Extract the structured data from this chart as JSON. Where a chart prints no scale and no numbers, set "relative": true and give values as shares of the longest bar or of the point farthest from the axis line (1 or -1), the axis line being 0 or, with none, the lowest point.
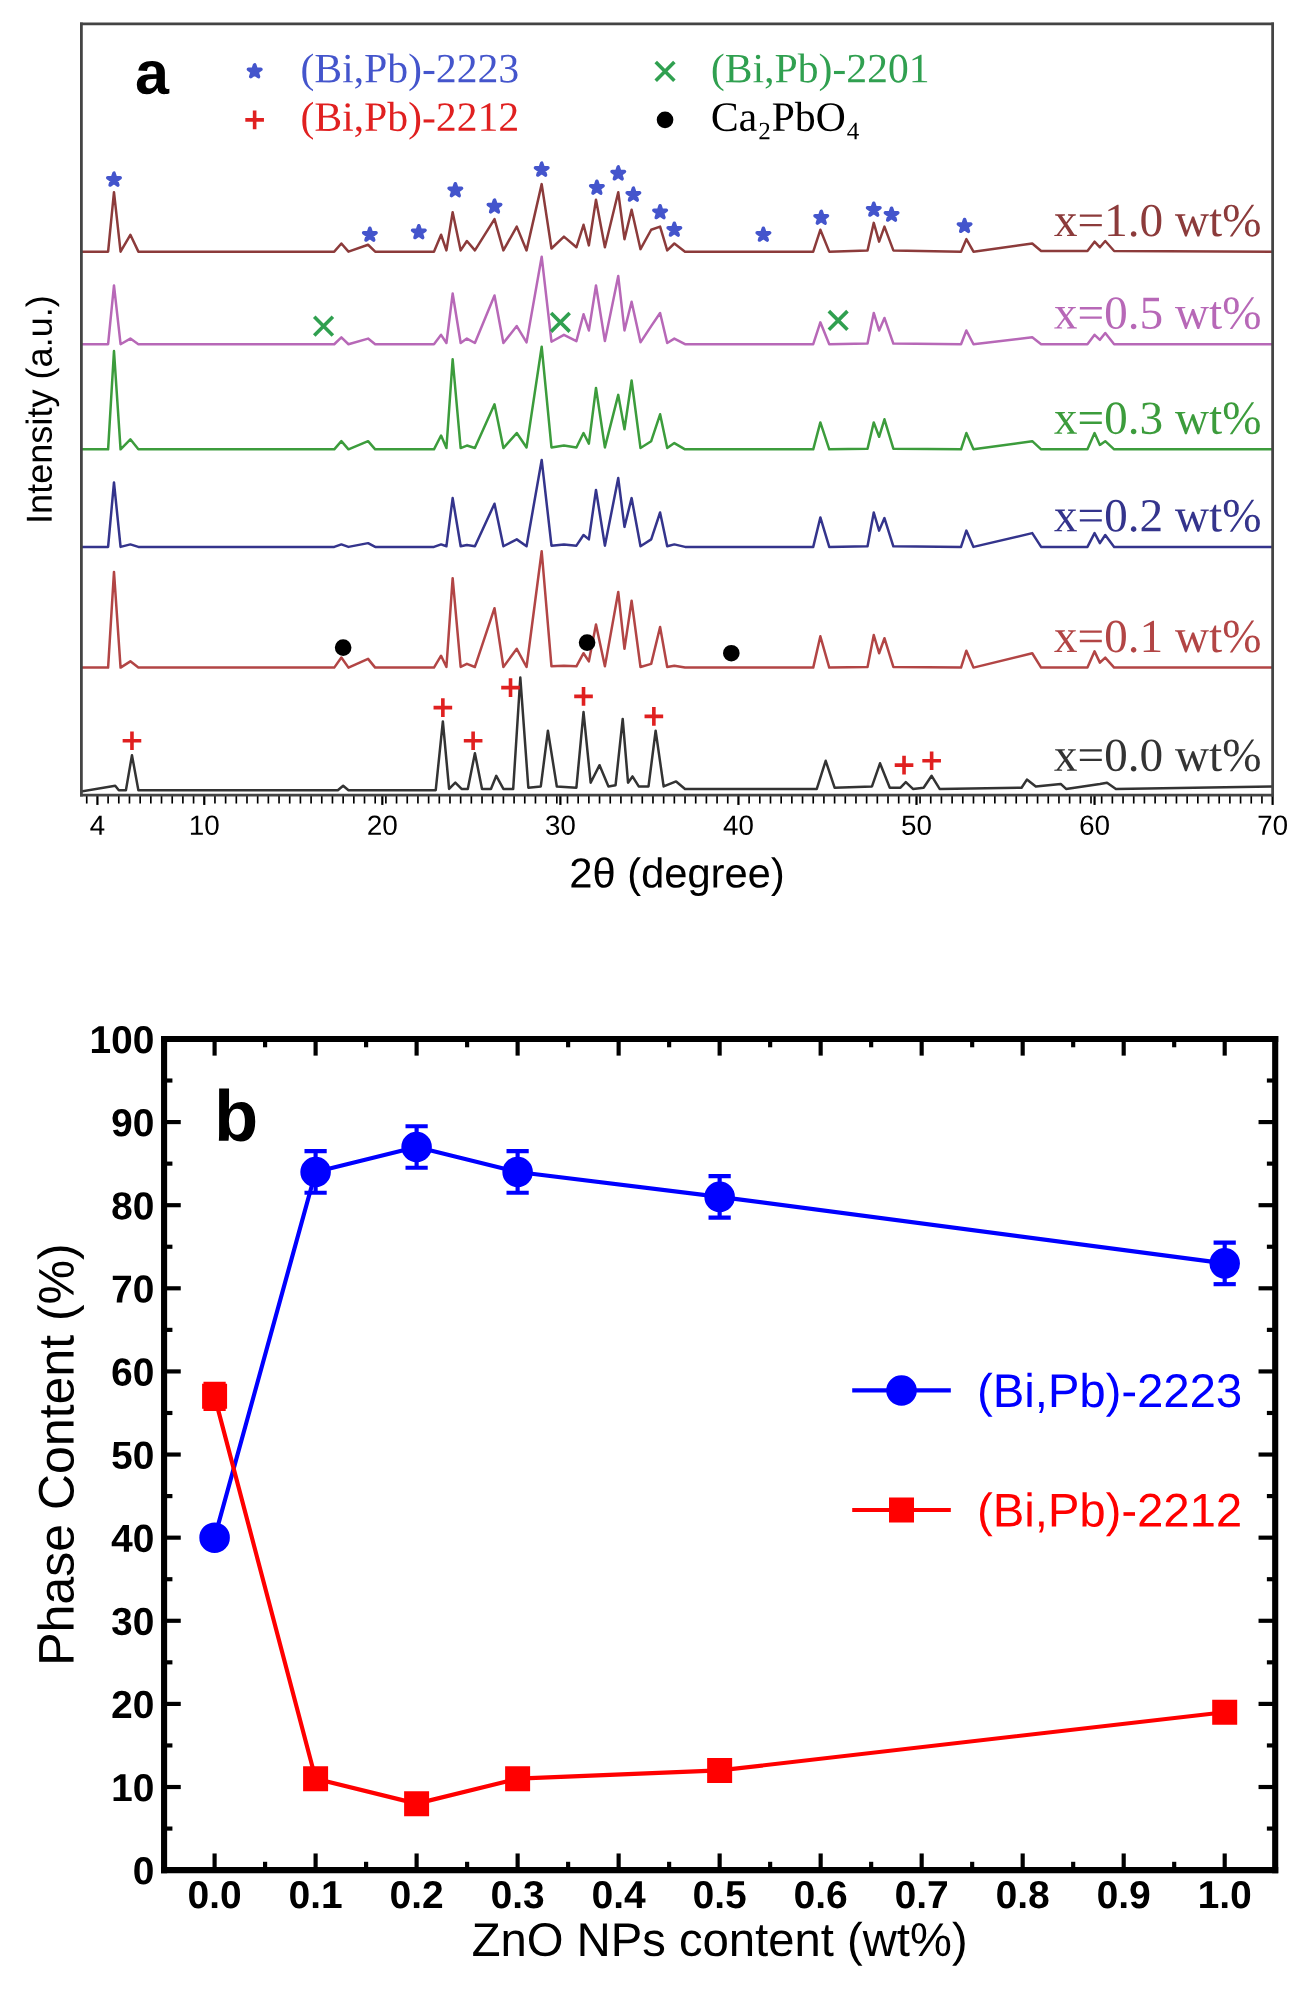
{
  "chart_data": [
    {
      "type": "line",
      "relative": true,
      "xlabel": "2θ (degree)",
      "ylabel": "Intensity (a.u.)",
      "annotations": [
        "a"
      ],
      "xlim": [
        3.1,
        70
      ],
      "xticks": [
        4,
        10,
        20,
        30,
        40,
        50,
        60,
        70
      ],
      "legend": "top",
      "marker": "none",
      "x": [
        3.1,
        4.6,
        4.93,
        5.3,
        5.85,
        6.3,
        17.3,
        17.7,
        18.1,
        19.2,
        19.6,
        22.9,
        23.3,
        23.6,
        23.95,
        24.4,
        24.75,
        25.2,
        26.3,
        26.8,
        27.55,
        28.1,
        28.95,
        29.5,
        30.2,
        30.9,
        31.3,
        31.6,
        32.0,
        32.5,
        33.25,
        33.6,
        34.0,
        34.5,
        35.1,
        35.6,
        36.0,
        36.4,
        37.0,
        44.2,
        44.6,
        45.1,
        47.25,
        47.6,
        47.9,
        48.2,
        48.7,
        52.5,
        52.8,
        53.2,
        56.5,
        57.0,
        59.6,
        60.0,
        60.3,
        60.6,
        61.1,
        70.0
      ],
      "series": [
        {
          "name": "x=1.0 wt%",
          "color": "#8c3b3b",
          "values": [
            0.869,
            0.869,
            0.964,
            0.869,
            0.896,
            0.869,
            0.869,
            0.882,
            0.869,
            0.88,
            0.869,
            0.869,
            0.896,
            0.871,
            0.932,
            0.871,
            0.886,
            0.871,
            0.921,
            0.871,
            0.909,
            0.871,
            0.977,
            0.874,
            0.893,
            0.876,
            0.912,
            0.879,
            0.952,
            0.876,
            0.964,
            0.889,
            0.936,
            0.873,
            0.904,
            0.909,
            0.871,
            0.882,
            0.869,
            0.869,
            0.904,
            0.869,
            0.871,
            0.915,
            0.885,
            0.909,
            0.871,
            0.869,
            0.889,
            0.869,
            0.882,
            0.87,
            0.87,
            0.885,
            0.876,
            0.886,
            0.87,
            0.869
          ]
        },
        {
          "name": "x=0.5 wt%",
          "color": "#b768b7",
          "values": [
            0.721,
            0.721,
            0.815,
            0.721,
            0.73,
            0.721,
            0.721,
            0.732,
            0.721,
            0.73,
            0.721,
            0.721,
            0.736,
            0.723,
            0.802,
            0.723,
            0.73,
            0.723,
            0.799,
            0.723,
            0.75,
            0.724,
            0.861,
            0.725,
            0.736,
            0.726,
            0.769,
            0.743,
            0.815,
            0.726,
            0.83,
            0.743,
            0.789,
            0.724,
            0.75,
            0.771,
            0.723,
            0.73,
            0.721,
            0.721,
            0.756,
            0.721,
            0.722,
            0.771,
            0.743,
            0.763,
            0.722,
            0.721,
            0.743,
            0.721,
            0.732,
            0.721,
            0.721,
            0.736,
            0.728,
            0.739,
            0.721,
            0.721
          ]
        },
        {
          "name": "x=0.3 wt%",
          "color": "#3c9c3c",
          "values": [
            0.553,
            0.553,
            0.71,
            0.553,
            0.569,
            0.553,
            0.553,
            0.566,
            0.553,
            0.566,
            0.553,
            0.553,
            0.575,
            0.555,
            0.697,
            0.555,
            0.559,
            0.555,
            0.625,
            0.555,
            0.579,
            0.556,
            0.717,
            0.556,
            0.559,
            0.556,
            0.579,
            0.562,
            0.651,
            0.556,
            0.64,
            0.585,
            0.663,
            0.555,
            0.566,
            0.609,
            0.555,
            0.563,
            0.553,
            0.553,
            0.596,
            0.553,
            0.554,
            0.596,
            0.573,
            0.601,
            0.554,
            0.553,
            0.579,
            0.553,
            0.566,
            0.553,
            0.553,
            0.579,
            0.56,
            0.566,
            0.553,
            0.553
          ]
        },
        {
          "name": "x=0.2 wt%",
          "color": "#34348c",
          "values": [
            0.397,
            0.397,
            0.5,
            0.397,
            0.401,
            0.397,
            0.397,
            0.401,
            0.397,
            0.403,
            0.397,
            0.397,
            0.401,
            0.398,
            0.475,
            0.398,
            0.4,
            0.398,
            0.466,
            0.398,
            0.409,
            0.398,
            0.536,
            0.399,
            0.401,
            0.399,
            0.416,
            0.409,
            0.488,
            0.399,
            0.507,
            0.429,
            0.475,
            0.398,
            0.409,
            0.452,
            0.398,
            0.401,
            0.397,
            0.397,
            0.444,
            0.397,
            0.398,
            0.452,
            0.423,
            0.443,
            0.398,
            0.397,
            0.423,
            0.397,
            0.419,
            0.397,
            0.397,
            0.419,
            0.403,
            0.416,
            0.397,
            0.397
          ]
        },
        {
          "name": "x=0.1 wt%",
          "color": "#b24545",
          "values": [
            0.204,
            0.204,
            0.357,
            0.204,
            0.214,
            0.204,
            0.204,
            0.22,
            0.204,
            0.218,
            0.204,
            0.204,
            0.223,
            0.205,
            0.347,
            0.205,
            0.21,
            0.205,
            0.299,
            0.205,
            0.234,
            0.205,
            0.39,
            0.206,
            0.207,
            0.206,
            0.227,
            0.214,
            0.273,
            0.206,
            0.325,
            0.234,
            0.311,
            0.205,
            0.21,
            0.269,
            0.205,
            0.207,
            0.204,
            0.204,
            0.254,
            0.204,
            0.205,
            0.256,
            0.227,
            0.251,
            0.205,
            0.204,
            0.231,
            0.204,
            0.227,
            0.204,
            0.204,
            0.23,
            0.212,
            0.22,
            0.204,
            0.204
          ]
        },
        {
          "name": "x=0.0 wt%",
          "color": "#333333",
          "x": [
            3.1,
            5.0,
            5.2,
            5.6,
            5.94,
            6.3,
            17.5,
            17.8,
            18.1,
            23.0,
            23.4,
            23.75,
            24.1,
            24.45,
            24.8,
            25.2,
            25.6,
            26.1,
            26.4,
            26.8,
            27.35,
            27.75,
            28.2,
            28.9,
            29.3,
            29.8,
            30.9,
            31.3,
            31.7,
            32.2,
            32.7,
            33.1,
            33.5,
            33.8,
            34.05,
            34.4,
            34.95,
            35.35,
            35.8,
            36.5,
            37.0,
            44.4,
            44.9,
            45.4,
            47.5,
            47.95,
            48.5,
            49.1,
            49.4,
            49.8,
            50.4,
            50.85,
            51.3,
            55.9,
            56.2,
            56.7,
            58.1,
            58.4,
            60.3,
            60.7,
            61.2,
            70.0
          ],
          "values": [
            0.006,
            0.015,
            0.008,
            0.008,
            0.064,
            0.008,
            0.008,
            0.015,
            0.008,
            0.008,
            0.118,
            0.01,
            0.02,
            0.01,
            0.01,
            0.067,
            0.01,
            0.01,
            0.031,
            0.01,
            0.01,
            0.188,
            0.012,
            0.014,
            0.103,
            0.014,
            0.012,
            0.133,
            0.02,
            0.048,
            0.014,
            0.016,
            0.122,
            0.02,
            0.03,
            0.014,
            0.014,
            0.103,
            0.014,
            0.022,
            0.01,
            0.01,
            0.055,
            0.012,
            0.014,
            0.051,
            0.012,
            0.012,
            0.021,
            0.01,
            0.012,
            0.031,
            0.01,
            0.012,
            0.025,
            0.014,
            0.018,
            0.01,
            0.018,
            0.02,
            0.01,
            0.014
          ]
        },
        {
          "name": "(Bi,Pb)-2223",
          "type": "scatter",
          "marker": "star",
          "color": "#4455cc",
          "x": [
            4.93,
            19.3,
            22.05,
            24.1,
            26.3,
            28.95,
            32.05,
            33.25,
            34.1,
            35.6,
            36.4,
            41.4,
            44.65,
            47.6,
            48.6,
            52.7
          ],
          "values": [
            0.984,
            0.896,
            0.9,
            0.967,
            0.941,
            1.0,
            0.971,
            0.994,
            0.96,
            0.932,
            0.904,
            0.896,
            0.923,
            0.936,
            0.928,
            0.91
          ]
        },
        {
          "name": "(Bi,Pb)-2212",
          "type": "scatter",
          "marker": "plus",
          "color": "#e02020",
          "x": [
            5.94,
            23.4,
            25.1,
            27.2,
            31.3,
            35.25,
            49.3,
            50.85
          ],
          "values": [
            0.087,
            0.14,
            0.087,
            0.172,
            0.158,
            0.126,
            0.048,
            0.055
          ]
        },
        {
          "name": "(Bi,Pb)-2201",
          "type": "scatter",
          "marker": "cross",
          "color": "#30a050",
          "x": [
            16.7,
            30.0,
            45.6
          ],
          "values": [
            0.75,
            0.756,
            0.759
          ]
        },
        {
          "name": "Ca₂PbO₄",
          "type": "scatter",
          "marker": "circle",
          "color": "#000000",
          "x": [
            17.8,
            31.5,
            39.6
          ],
          "values": [
            0.236,
            0.244,
            0.227
          ]
        }
      ]
    },
    {
      "type": "line",
      "xlabel": "ZnO NPs content (wt%)",
      "ylabel": "Phase Content (%)",
      "annotations": [
        "b"
      ],
      "x": [
        0,
        0.1,
        0.2,
        0.3,
        0.5,
        1.0
      ],
      "xlim": [
        -0.05,
        1.05
      ],
      "xticks": [
        {
          "value": 0,
          "label": "0.0"
        },
        {
          "value": 0.1,
          "label": "0.1"
        },
        {
          "value": 0.2,
          "label": "0.2"
        },
        {
          "value": 0.3,
          "label": "0.3"
        },
        {
          "value": 0.4,
          "label": "0.4"
        },
        {
          "value": 0.5,
          "label": "0.5"
        },
        {
          "value": 0.6,
          "label": "0.6"
        },
        {
          "value": 0.7,
          "label": "0.7"
        },
        {
          "value": 0.8,
          "label": "0.8"
        },
        {
          "value": 0.9,
          "label": "0.9"
        },
        {
          "value": 1.0,
          "label": "1.0"
        }
      ],
      "ylim": [
        0,
        100
      ],
      "yticks": [
        0,
        10,
        20,
        30,
        40,
        50,
        60,
        70,
        80,
        90,
        100
      ],
      "legend": "right",
      "series": [
        {
          "name": "(Bi,Pb)-2223",
          "color": "#0000ff",
          "marker": "circle",
          "values": [
            40,
            84,
            87,
            84,
            81,
            73
          ],
          "errors": [
            null,
            2.5,
            2.5,
            2.5,
            2.5,
            2.5
          ]
        },
        {
          "name": "(Bi,Pb)-2212",
          "color": "#ff0000",
          "marker": "square",
          "values": [
            57,
            11,
            8,
            11,
            12,
            19
          ],
          "errors": [
            1.5,
            null,
            null,
            null,
            null,
            null
          ]
        }
      ]
    }
  ]
}
